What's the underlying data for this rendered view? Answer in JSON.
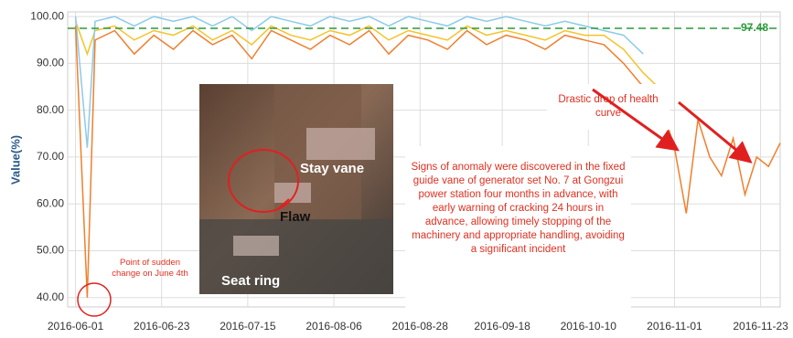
{
  "chart_data": {
    "type": "line",
    "y_label": "Value(%)",
    "x": [
      "2016-06-01",
      "2016-06-04",
      "2016-06-06",
      "2016-06-11",
      "2016-06-16",
      "2016-06-21",
      "2016-06-26",
      "2016-07-01",
      "2016-07-06",
      "2016-07-11",
      "2016-07-16",
      "2016-07-21",
      "2016-07-26",
      "2016-07-31",
      "2016-08-05",
      "2016-08-10",
      "2016-08-15",
      "2016-08-20",
      "2016-08-25",
      "2016-08-30",
      "2016-09-04",
      "2016-09-09",
      "2016-09-14",
      "2016-09-19",
      "2016-09-24",
      "2016-09-29",
      "2016-10-04",
      "2016-10-09",
      "2016-10-14",
      "2016-10-19",
      "2016-10-24",
      "2016-10-29",
      "2016-11-01",
      "2016-11-04",
      "2016-11-07",
      "2016-11-10",
      "2016-11-13",
      "2016-11-16",
      "2016-11-19",
      "2016-11-22",
      "2016-11-25",
      "2016-11-28"
    ],
    "series": [
      {
        "color": "#f5c22a",
        "values": [
          99,
          92,
          97,
          98,
          95,
          97,
          96,
          98,
          95,
          97,
          94,
          98,
          96,
          95,
          97,
          96,
          98,
          95,
          97,
          96,
          95,
          98,
          96,
          97,
          96,
          95,
          97,
          96,
          96,
          93,
          88,
          84,
          null,
          null,
          null,
          null,
          null,
          null,
          null,
          null,
          null,
          null
        ]
      },
      {
        "color": "#8ccbe8",
        "values": [
          100,
          72,
          99,
          100,
          98,
          100,
          99,
          100,
          98,
          100,
          97,
          100,
          99,
          98,
          100,
          99,
          100,
          98,
          100,
          99,
          98,
          100,
          99,
          100,
          99,
          98,
          99,
          98,
          97,
          96,
          92,
          null,
          null,
          null,
          null,
          null,
          null,
          null,
          null,
          null,
          null,
          null
        ]
      },
      {
        "color": "#f07f2e",
        "values": [
          98,
          40,
          95,
          97,
          92,
          96,
          93,
          97,
          94,
          96,
          91,
          97,
          95,
          93,
          96,
          94,
          97,
          92,
          96,
          95,
          93,
          97,
          94,
          96,
          95,
          93,
          96,
          95,
          94,
          90,
          85,
          80,
          72,
          58,
          78,
          70,
          66,
          74,
          62,
          70,
          68,
          73
        ]
      }
    ],
    "reference_line": {
      "value": 97.48,
      "color": "#2a9a3a"
    },
    "xlim": [
      "2016-05-30",
      "2016-11-28"
    ],
    "xticks": [
      "2016-06-01",
      "2016-06-23",
      "2016-07-15",
      "2016-08-06",
      "2016-08-28",
      "2016-09-18",
      "2016-10-10",
      "2016-11-01",
      "2016-11-23"
    ],
    "ylim": [
      38,
      101
    ],
    "yticks": [
      {
        "value": 40,
        "label": "40.00"
      },
      {
        "value": 50,
        "label": "50.00"
      },
      {
        "value": 60,
        "label": "60.00"
      },
      {
        "value": 70,
        "label": "70.00"
      },
      {
        "value": 80,
        "label": "80.00"
      },
      {
        "value": 90,
        "label": "90.00"
      },
      {
        "value": 100,
        "label": "100.00"
      }
    ],
    "grid": true,
    "annotations": {
      "sudden_change": "Point of sudden change on June 4th",
      "drastic_drop": "Drastic drop of health curve",
      "summary": "Signs of anomaly were discovered in the fixed guide vane of generator set No. 7 at Gongzui power station four months in advance, with early warning of cracking 24 hours in advance, allowing timely stopping of the machinery and appropriate handling, avoiding a significant incident",
      "stay_vane": "Stay vane",
      "flaw": "Flaw",
      "seat_ring": "Seat ring"
    }
  }
}
